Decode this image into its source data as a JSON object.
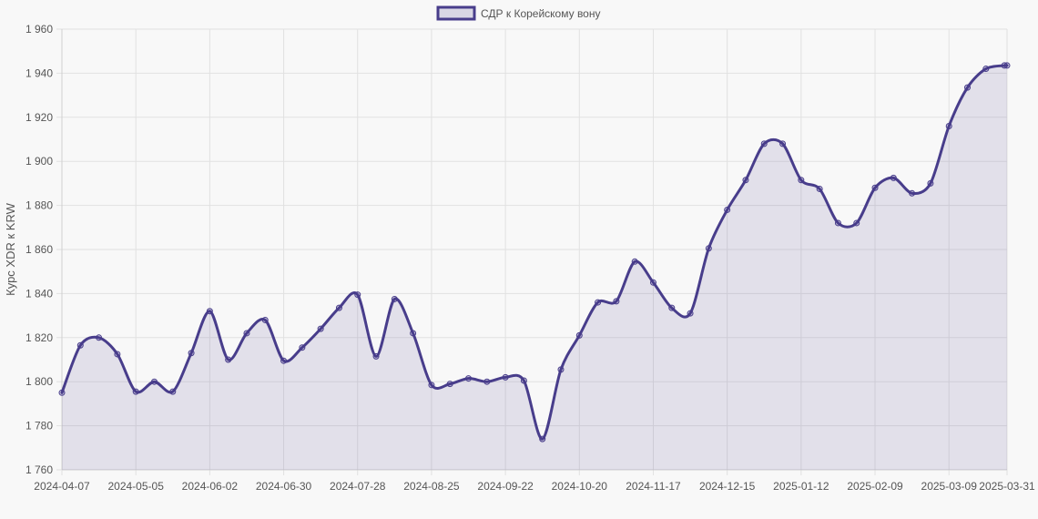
{
  "chart_data": {
    "type": "line",
    "title": "",
    "xlabel": "",
    "ylabel": "Курс XDR к KRW",
    "legend_position": "top",
    "grid": true,
    "fill_area": true,
    "ylim": [
      1760,
      1960
    ],
    "yticks": [
      1760,
      1780,
      1800,
      1820,
      1840,
      1860,
      1880,
      1900,
      1920,
      1940,
      1960
    ],
    "ytick_labels": [
      "1 760",
      "1 780",
      "1 800",
      "1 820",
      "1 840",
      "1 860",
      "1 880",
      "1 900",
      "1 920",
      "1 940",
      "1 960"
    ],
    "xlim": [
      "2024-04-07",
      "2025-03-31"
    ],
    "xticks": [
      "2024-04-07",
      "2024-05-05",
      "2024-06-02",
      "2024-06-30",
      "2024-07-28",
      "2024-08-25",
      "2024-09-22",
      "2024-10-20",
      "2024-11-17",
      "2024-12-15",
      "2025-01-12",
      "2025-02-09",
      "2025-03-09",
      "2025-03-31"
    ],
    "x": [
      "2024-04-07",
      "2024-04-14",
      "2024-04-21",
      "2024-04-28",
      "2024-05-05",
      "2024-05-12",
      "2024-05-19",
      "2024-05-26",
      "2024-06-02",
      "2024-06-09",
      "2024-06-16",
      "2024-06-23",
      "2024-06-30",
      "2024-07-07",
      "2024-07-14",
      "2024-07-21",
      "2024-07-28",
      "2024-08-04",
      "2024-08-11",
      "2024-08-18",
      "2024-08-25",
      "2024-09-01",
      "2024-09-08",
      "2024-09-15",
      "2024-09-22",
      "2024-09-29",
      "2024-10-06",
      "2024-10-13",
      "2024-10-20",
      "2024-10-27",
      "2024-11-03",
      "2024-11-10",
      "2024-11-17",
      "2024-11-24",
      "2024-12-01",
      "2024-12-08",
      "2024-12-15",
      "2024-12-22",
      "2024-12-29",
      "2025-01-05",
      "2025-01-12",
      "2025-01-19",
      "2025-01-26",
      "2025-02-02",
      "2025-02-09",
      "2025-02-16",
      "2025-02-23",
      "2025-03-02",
      "2025-03-09",
      "2025-03-16",
      "2025-03-23",
      "2025-03-30",
      "2025-03-31"
    ],
    "series": [
      {
        "name": "СДР к Корейскому вону",
        "color": "#483d8b",
        "fill": "rgba(72,61,139,0.12)",
        "values": [
          1795,
          1816.5,
          1820,
          1812.5,
          1795.5,
          1800,
          1795.5,
          1813,
          1832,
          1810,
          1822,
          1828,
          1809.5,
          1815.5,
          1824,
          1833.5,
          1839.5,
          1811.5,
          1837.5,
          1822,
          1798.5,
          1799,
          1801.5,
          1800,
          1802,
          1800.5,
          1774,
          1805.5,
          1821,
          1836,
          1836.5,
          1854.5,
          1845,
          1833.5,
          1831,
          1860.5,
          1878,
          1891.5,
          1908,
          1908,
          1891.5,
          1887.5,
          1872,
          1872,
          1888,
          1892.5,
          1885.5,
          1890,
          1916,
          1933.5,
          1942,
          1943.5,
          1943.5
        ]
      }
    ]
  }
}
